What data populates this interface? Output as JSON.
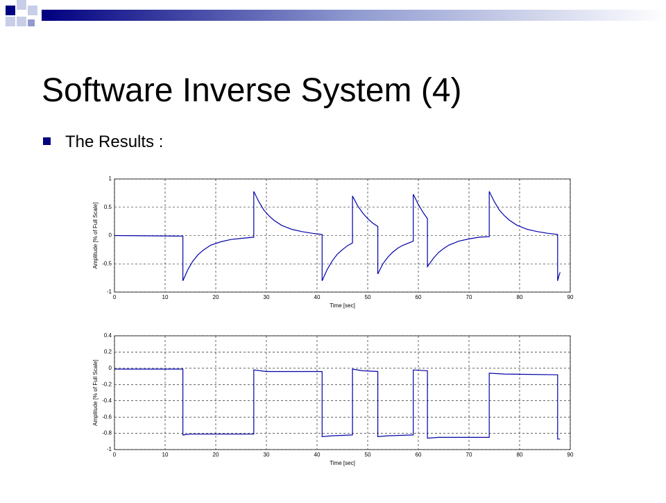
{
  "slide": {
    "title": "Software Inverse System (4)",
    "bullet": "The Results :"
  },
  "chart_data": [
    {
      "type": "line",
      "xlabel": "Time [sec]",
      "ylabel": "Amplitude [% of Full Scale]",
      "xlim": [
        0,
        90
      ],
      "xticks": [
        0,
        10,
        20,
        30,
        40,
        50,
        60,
        70,
        80,
        90
      ],
      "ylim": [
        -1,
        1
      ],
      "yticks": [
        -1,
        -0.5,
        0,
        0.5,
        1
      ],
      "grid": true,
      "series": [
        {
          "color": "#0000a8",
          "x": [
            0,
            13.5,
            13.5,
            14.5,
            15.5,
            16.5,
            17.5,
            19,
            21,
            23,
            25,
            27.5,
            27.5,
            28.5,
            29.5,
            30.5,
            31.5,
            33,
            35,
            37,
            39,
            41,
            41,
            42,
            43,
            44,
            45,
            46,
            47,
            47,
            48,
            49,
            50,
            51,
            52,
            52,
            53,
            54,
            55,
            56,
            57,
            59,
            59,
            60,
            61,
            61.8,
            61.8,
            63,
            64,
            65,
            66,
            68,
            70,
            72,
            74,
            74,
            75,
            76,
            77,
            78,
            79.5,
            81.5,
            83.5,
            85.5,
            87.5,
            87.5,
            87.8,
            88
          ],
          "values": [
            0,
            -0.01,
            -0.8,
            -0.6,
            -0.45,
            -0.34,
            -0.26,
            -0.17,
            -0.11,
            -0.07,
            -0.05,
            -0.03,
            0.78,
            0.6,
            0.45,
            0.35,
            0.27,
            0.18,
            0.11,
            0.07,
            0.04,
            0.02,
            -0.8,
            -0.6,
            -0.45,
            -0.33,
            -0.25,
            -0.18,
            -0.13,
            0.7,
            0.53,
            0.4,
            0.3,
            0.22,
            0.16,
            -0.68,
            -0.5,
            -0.38,
            -0.29,
            -0.22,
            -0.17,
            -0.1,
            0.73,
            0.55,
            0.4,
            0.3,
            -0.55,
            -0.4,
            -0.3,
            -0.23,
            -0.17,
            -0.1,
            -0.06,
            -0.03,
            -0.02,
            0.78,
            0.6,
            0.45,
            0.35,
            0.27,
            0.18,
            0.11,
            0.07,
            0.04,
            0.02,
            -0.8,
            -0.7,
            -0.65
          ]
        }
      ]
    },
    {
      "type": "line",
      "xlabel": "Time [sec]",
      "ylabel": "Amplitude [% of Full Scale]",
      "xlim": [
        0,
        90
      ],
      "xticks": [
        0,
        10,
        20,
        30,
        40,
        50,
        60,
        70,
        80,
        90
      ],
      "ylim": [
        -1,
        0.4
      ],
      "yticks": [
        -1,
        -0.8,
        -0.6,
        -0.4,
        -0.2,
        0,
        0.2,
        0.4
      ],
      "grid": true,
      "series": [
        {
          "color": "#0000a8",
          "x": [
            0,
            13.5,
            13.5,
            15,
            27.5,
            27.5,
            30,
            41,
            41,
            43,
            47,
            47,
            49,
            52,
            52,
            54,
            59,
            59,
            61.8,
            61.8,
            64,
            74,
            74,
            77,
            87.5,
            87.5,
            88
          ],
          "values": [
            -0.01,
            -0.01,
            -0.82,
            -0.81,
            -0.81,
            -0.02,
            -0.04,
            -0.04,
            -0.84,
            -0.83,
            -0.82,
            -0.01,
            -0.03,
            -0.04,
            -0.84,
            -0.83,
            -0.82,
            -0.02,
            -0.03,
            -0.86,
            -0.85,
            -0.85,
            -0.06,
            -0.07,
            -0.08,
            -0.87,
            -0.87
          ]
        }
      ]
    }
  ]
}
